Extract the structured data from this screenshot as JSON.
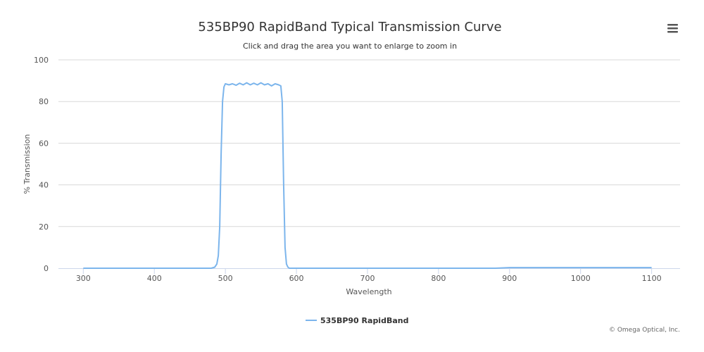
{
  "chart_data": {
    "type": "line",
    "title": "535BP90 RapidBand Typical Transmission Curve",
    "subtitle": "Click and drag the area you want to enlarge to zoom in",
    "xlabel": "Wavelength",
    "ylabel": "% Transmission",
    "xlim": [
      265,
      1140
    ],
    "ylim": [
      0,
      100
    ],
    "xticks": [
      300,
      400,
      500,
      600,
      700,
      800,
      900,
      1000,
      1100
    ],
    "yticks": [
      0,
      20,
      40,
      60,
      80,
      100
    ],
    "grid": "horizontal",
    "legend_position": "bottom-center",
    "series": [
      {
        "name": "535BP90 RapidBand",
        "color": "#7cb5ec",
        "x": [
          300,
          400,
          480,
          485,
          488,
          490,
          492,
          494,
          496,
          498,
          500,
          505,
          510,
          515,
          520,
          525,
          530,
          535,
          540,
          545,
          550,
          555,
          560,
          565,
          570,
          575,
          578,
          580,
          582,
          584,
          586,
          588,
          590,
          600,
          700,
          800,
          880,
          900,
          950,
          1000,
          1050,
          1100
        ],
        "y": [
          0,
          0,
          0,
          0.5,
          2,
          6,
          20,
          55,
          80,
          87,
          88.5,
          88,
          88.5,
          87.8,
          88.8,
          88,
          89,
          88,
          88.8,
          88,
          89,
          88,
          88.5,
          87.5,
          88.5,
          88,
          87.5,
          80,
          40,
          10,
          2,
          0.5,
          0,
          0,
          0,
          0,
          0,
          0.3,
          0.3,
          0.3,
          0.3,
          0.3
        ]
      }
    ]
  },
  "ui": {
    "menu_icon": "hamburger-icon",
    "credit": "© Omega Optical, Inc."
  }
}
